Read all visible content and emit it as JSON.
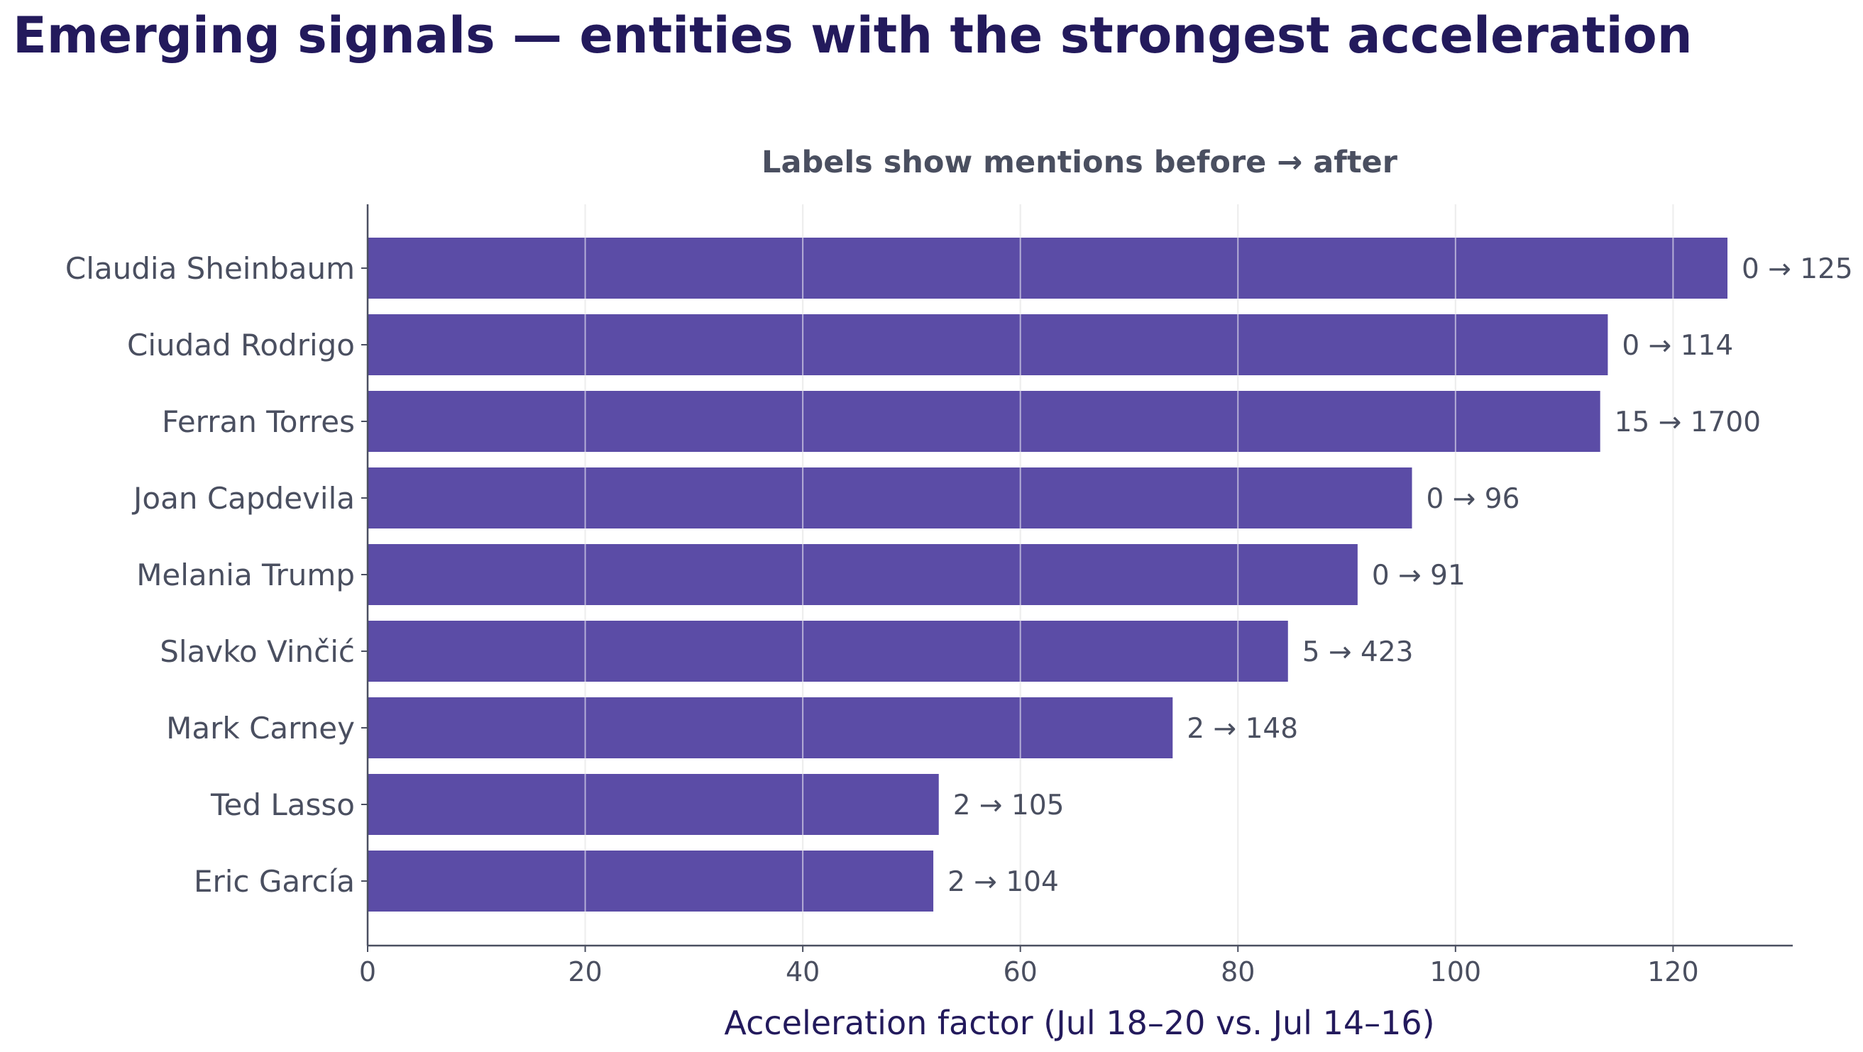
{
  "colors": {
    "bar": "#5b4ca6",
    "title": "#231a5c",
    "text": "#4a4f60",
    "grid": "#d9d9d9",
    "axis": "#4a4f60"
  },
  "chart_data": {
    "type": "bar",
    "orientation": "horizontal",
    "title": "Emerging signals — entities with the strongest acceleration",
    "subtitle": "Labels show mentions before → after",
    "xlabel": "Acceleration factor (Jul 18–20 vs. Jul 14–16)",
    "ylabel": "",
    "xlim": [
      0,
      131
    ],
    "xticks": [
      0,
      20,
      40,
      60,
      80,
      100,
      120
    ],
    "grid": "vertical",
    "categories": [
      "Claudia Sheinbaum",
      "Ciudad Rodrigo",
      "Ferran Torres",
      "Joan Capdevila",
      "Melania Trump",
      "Slavko Vinčić",
      "Mark Carney",
      "Ted Lasso",
      "Eric García"
    ],
    "values": [
      125,
      114,
      113.3,
      96,
      91,
      84.6,
      74,
      52.5,
      52
    ],
    "data_labels": [
      "0 → 125",
      "0 → 114",
      "15 → 1700",
      "0 → 96",
      "0 → 91",
      "5 → 423",
      "2 → 148",
      "2 → 105",
      "2 → 104"
    ]
  }
}
